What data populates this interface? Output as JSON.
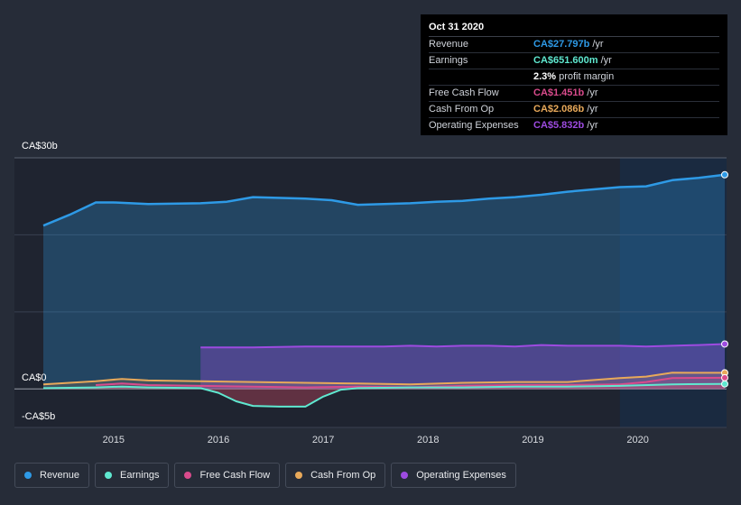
{
  "tooltip": {
    "date": "Oct 31 2020",
    "rows": [
      {
        "label": "Revenue",
        "value": "CA$27.797b",
        "unit": "/yr",
        "color": "#2e9ae6"
      },
      {
        "label": "Earnings",
        "value": "CA$651.600m",
        "unit": "/yr",
        "color": "#5fe8d0"
      },
      {
        "label": "",
        "value": "2.3%",
        "unit": "profit margin",
        "color": "#ffffff"
      },
      {
        "label": "Free Cash Flow",
        "value": "CA$1.451b",
        "unit": "/yr",
        "color": "#d94b8c"
      },
      {
        "label": "Cash From Op",
        "value": "CA$2.086b",
        "unit": "/yr",
        "color": "#e8a95a"
      },
      {
        "label": "Operating Expenses",
        "value": "CA$5.832b",
        "unit": "/yr",
        "color": "#9d4be0"
      }
    ]
  },
  "chart_data": {
    "type": "area",
    "ylim": [
      -5,
      30
    ],
    "y_tick_labels": [
      "CA$30b",
      "CA$0",
      "-CA$5b"
    ],
    "x_tick_labels": [
      "2015",
      "2016",
      "2017",
      "2018",
      "2019",
      "2020"
    ],
    "x_ticks": [
      2015,
      2016,
      2017,
      2018,
      2019,
      2020
    ],
    "xlim": [
      2014.33,
      2020.83
    ],
    "highlight_start": 2019.83,
    "series": [
      {
        "name": "Revenue",
        "color": "#2e9ae6",
        "x": [
          2014.33,
          2014.58,
          2014.83,
          2015.0,
          2015.33,
          2015.83,
          2016.08,
          2016.33,
          2016.83,
          2017.08,
          2017.33,
          2017.58,
          2017.83,
          2018.08,
          2018.33,
          2018.58,
          2018.83,
          2019.08,
          2019.33,
          2019.58,
          2019.83,
          2020.08,
          2020.33,
          2020.58,
          2020.83
        ],
        "y": [
          21.2,
          22.6,
          24.2,
          24.2,
          24.0,
          24.1,
          24.3,
          24.9,
          24.7,
          24.5,
          23.9,
          24.0,
          24.1,
          24.3,
          24.4,
          24.7,
          24.9,
          25.2,
          25.6,
          25.9,
          26.2,
          26.3,
          27.1,
          27.4,
          27.8
        ]
      },
      {
        "name": "Earnings",
        "color": "#5fe8d0",
        "x": [
          2014.33,
          2014.83,
          2015.08,
          2015.33,
          2015.83,
          2016.0,
          2016.17,
          2016.33,
          2016.58,
          2016.83,
          2017.0,
          2017.17,
          2017.33,
          2017.83,
          2018.33,
          2018.83,
          2019.33,
          2019.83,
          2020.33,
          2020.83
        ],
        "y": [
          0.1,
          0.2,
          0.3,
          0.2,
          0.1,
          -0.5,
          -1.6,
          -2.2,
          -2.3,
          -2.3,
          -1.0,
          -0.1,
          0.1,
          0.2,
          0.2,
          0.3,
          0.3,
          0.4,
          0.6,
          0.65
        ]
      },
      {
        "name": "Free Cash Flow",
        "color": "#d94b8c",
        "x": [
          2014.83,
          2015.08,
          2015.33,
          2015.83,
          2016.33,
          2016.83,
          2017.33,
          2017.83,
          2018.33,
          2018.83,
          2019.33,
          2019.83,
          2020.08,
          2020.33,
          2020.83
        ],
        "y": [
          0.5,
          0.7,
          0.5,
          0.4,
          0.3,
          0.2,
          0.3,
          0.2,
          0.4,
          0.5,
          0.5,
          0.6,
          0.9,
          1.4,
          1.45
        ]
      },
      {
        "name": "Cash From Op",
        "color": "#e8a95a",
        "x": [
          2014.33,
          2014.58,
          2014.83,
          2015.08,
          2015.33,
          2015.83,
          2016.33,
          2016.83,
          2017.33,
          2017.83,
          2018.33,
          2018.83,
          2019.33,
          2019.83,
          2020.08,
          2020.33,
          2020.83
        ],
        "y": [
          0.6,
          0.8,
          1.0,
          1.3,
          1.1,
          1.0,
          0.9,
          0.8,
          0.7,
          0.6,
          0.8,
          0.9,
          0.9,
          1.4,
          1.6,
          2.1,
          2.09
        ]
      },
      {
        "name": "Operating Expenses",
        "color": "#9d4be0",
        "x": [
          2015.83,
          2016.33,
          2016.83,
          2017.08,
          2017.33,
          2017.58,
          2017.83,
          2018.08,
          2018.33,
          2018.58,
          2018.83,
          2019.08,
          2019.33,
          2019.58,
          2019.83,
          2020.08,
          2020.33,
          2020.58,
          2020.83
        ],
        "y": [
          5.4,
          5.4,
          5.5,
          5.5,
          5.5,
          5.5,
          5.6,
          5.5,
          5.6,
          5.6,
          5.5,
          5.7,
          5.6,
          5.6,
          5.6,
          5.5,
          5.6,
          5.7,
          5.83
        ]
      }
    ]
  },
  "legend": [
    {
      "label": "Revenue",
      "color": "#2e9ae6"
    },
    {
      "label": "Earnings",
      "color": "#5fe8d0"
    },
    {
      "label": "Free Cash Flow",
      "color": "#d94b8c"
    },
    {
      "label": "Cash From Op",
      "color": "#e8a95a"
    },
    {
      "label": "Operating Expenses",
      "color": "#9d4be0"
    }
  ]
}
